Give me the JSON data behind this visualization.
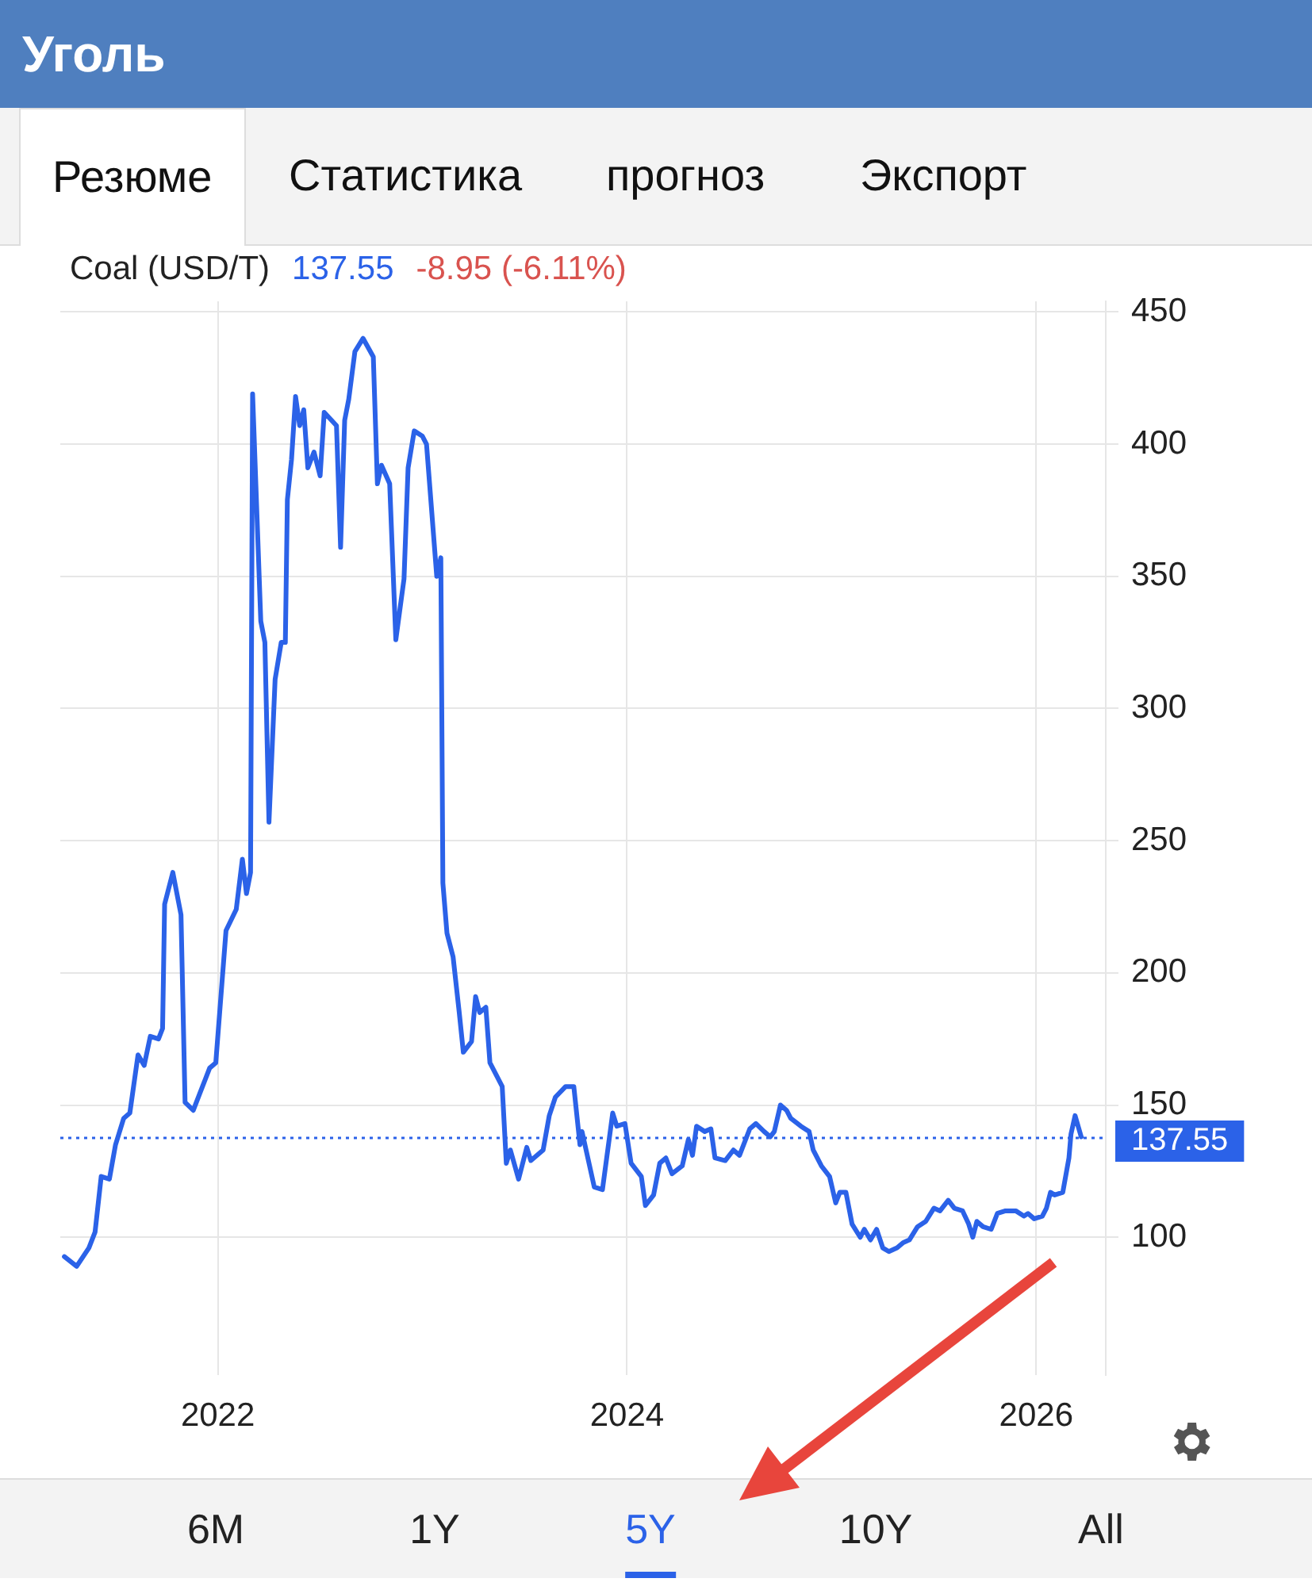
{
  "chart_data": {
    "type": "line",
    "title": "Уголь",
    "subtitle": "Coal (USD/T)",
    "annotations": [
      "137.55",
      "-8.95 (-6.11%)",
      "Резюме",
      "Статистика",
      "прогноз",
      "Экспорт",
      "6M",
      "1Y",
      "5Y",
      "10Y",
      "All"
    ],
    "xlim": [
      2021.23,
      2026.34
    ],
    "xticks": [
      2022,
      2024,
      2026
    ],
    "ylim": [
      48,
      454
    ],
    "yticks": [
      100,
      150,
      200,
      250,
      300,
      350,
      400,
      450
    ],
    "grid": true,
    "marker": "none",
    "line_style": "solid",
    "ref_lines": [
      {
        "axis": "y",
        "value": 137.55,
        "label": "137.55",
        "color": "#2b62e8",
        "line_style": "dotted"
      }
    ],
    "series": [
      {
        "color": "#2b62e8",
        "x": [
          2021.25,
          2021.31,
          2021.37,
          2021.4,
          2021.43,
          2021.47,
          2021.5,
          2021.54,
          2021.57,
          2021.61,
          2021.64,
          2021.67,
          2021.71,
          2021.73,
          2021.74,
          2021.78,
          2021.82,
          2021.84,
          2021.88,
          2021.91,
          2021.96,
          2021.99,
          2022.04,
          2022.09,
          2022.12,
          2022.14,
          2022.16,
          2022.17,
          2022.21,
          2022.23,
          2022.25,
          2022.28,
          2022.31,
          2022.33,
          2022.34,
          2022.36,
          2022.38,
          2022.4,
          2022.42,
          2022.44,
          2022.47,
          2022.5,
          2022.52,
          2022.58,
          2022.6,
          2022.62,
          2022.64,
          2022.67,
          2022.71,
          2022.76,
          2022.78,
          2022.8,
          2022.84,
          2022.87,
          2022.91,
          2022.93,
          2022.96,
          2023.0,
          2023.02,
          2023.07,
          2023.09,
          2023.1,
          2023.12,
          2023.15,
          2023.18,
          2023.2,
          2023.24,
          2023.26,
          2023.28,
          2023.31,
          2023.33,
          2023.39,
          2023.41,
          2023.43,
          2023.47,
          2023.51,
          2023.53,
          2023.59,
          2023.62,
          2023.65,
          2023.7,
          2023.74,
          2023.77,
          2023.78,
          2023.84,
          2023.88,
          2023.93,
          2023.95,
          2023.99,
          2024.02,
          2024.07,
          2024.09,
          2024.13,
          2024.16,
          2024.19,
          2024.22,
          2024.27,
          2024.3,
          2024.32,
          2024.34,
          2024.38,
          2024.41,
          2024.43,
          2024.48,
          2024.52,
          2024.55,
          2024.6,
          2024.63,
          2024.67,
          2024.7,
          2024.72,
          2024.75,
          2024.78,
          2024.8,
          2024.85,
          2024.89,
          2024.91,
          2024.95,
          2024.99,
          2025.02,
          2025.04,
          2025.07,
          2025.1,
          2025.14,
          2025.16,
          2025.19,
          2025.22,
          2025.25,
          2025.28,
          2025.32,
          2025.35,
          2025.38,
          2025.42,
          2025.46,
          2025.5,
          2025.53,
          2025.57,
          2025.6,
          2025.64,
          2025.67,
          2025.69,
          2025.71,
          2025.74,
          2025.78,
          2025.81,
          2025.85,
          2025.9,
          2025.94,
          2025.96,
          2025.99,
          2026.03,
          2026.05,
          2026.07,
          2026.09,
          2026.13,
          2026.16,
          2026.17,
          2026.19,
          2026.22
        ],
        "values": [
          92.7,
          89,
          96,
          102,
          123,
          122,
          135,
          145,
          147,
          169,
          165,
          176,
          175,
          179,
          226,
          238,
          222,
          151,
          148,
          154,
          164,
          166,
          216,
          224,
          243,
          230,
          238,
          419,
          333,
          325,
          257,
          311,
          325,
          325,
          379,
          394,
          418,
          407,
          413,
          391,
          397,
          388,
          412,
          407,
          361,
          409,
          417,
          435,
          440,
          433,
          385,
          392,
          385,
          326,
          349,
          391,
          405,
          403,
          400,
          350,
          357,
          234,
          215,
          206,
          185,
          170,
          174,
          191,
          185,
          187,
          166,
          157,
          128,
          133,
          122,
          134,
          129,
          133,
          146,
          153,
          157,
          157,
          135,
          140,
          119,
          118,
          147,
          142,
          143,
          128,
          123,
          112,
          116,
          128,
          130,
          124,
          127,
          137,
          131,
          142,
          140,
          141,
          130,
          129,
          133,
          131,
          141,
          143,
          140,
          138,
          140,
          150,
          148,
          145,
          142,
          140,
          133,
          127,
          123,
          113,
          117,
          117,
          105,
          100,
          103,
          99,
          103,
          96,
          94.6,
          96,
          98,
          99,
          104,
          106,
          111,
          110,
          114,
          111,
          110,
          105,
          100,
          106,
          104,
          103,
          109,
          110,
          110,
          108,
          109,
          107,
          108,
          111,
          117,
          116,
          117,
          130,
          139,
          146,
          138
        ]
      }
    ]
  }
}
